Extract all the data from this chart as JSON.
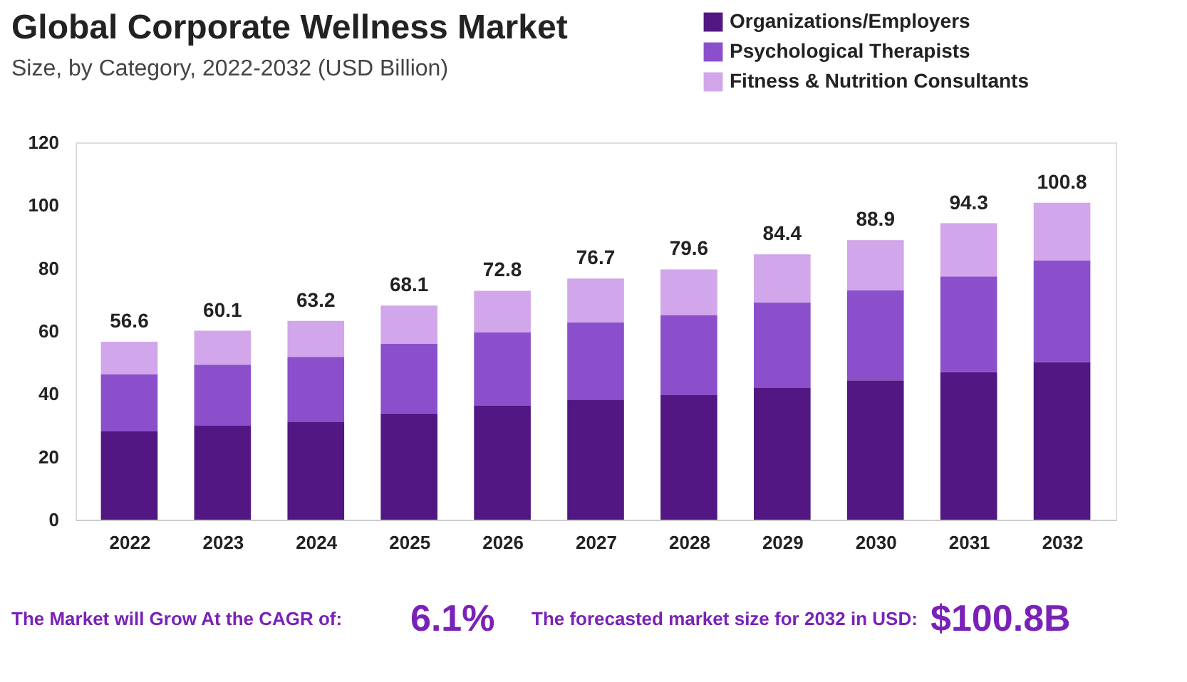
{
  "chart_data": {
    "type": "bar",
    "stacked": true,
    "title": "Global Corporate Wellness Market",
    "subtitle": "Size, by Category, 2022-2032 (USD Billion)",
    "categories": [
      "2022",
      "2023",
      "2024",
      "2025",
      "2026",
      "2027",
      "2028",
      "2029",
      "2030",
      "2031",
      "2032"
    ],
    "series": [
      {
        "name": "Organizations/Employers",
        "color": "#521782",
        "values": [
          28.1,
          29.9,
          31.2,
          33.8,
          36.2,
          38.2,
          39.6,
          41.9,
          44.3,
          46.9,
          50.1
        ]
      },
      {
        "name": "Psychological Therapists",
        "color": "#8b4fcb",
        "values": [
          18.2,
          19.4,
          20.6,
          22.1,
          23.4,
          24.6,
          25.5,
          27.2,
          28.6,
          30.5,
          32.4
        ]
      },
      {
        "name": "Fitness & Nutrition Consultants",
        "color": "#d1a6ea",
        "values": [
          10.3,
          10.8,
          11.4,
          12.2,
          13.2,
          13.9,
          14.5,
          15.3,
          16.0,
          16.9,
          18.3
        ]
      }
    ],
    "totals": [
      "56.6",
      "60.1",
      "63.2",
      "68.1",
      "72.8",
      "76.7",
      "79.6",
      "84.4",
      "88.9",
      "94.3",
      "100.8"
    ],
    "ylim": [
      0,
      120
    ],
    "yticks": [
      0,
      20,
      40,
      60,
      80,
      100,
      120
    ],
    "grid": false,
    "legend": "top right",
    "annotations": [
      "The Market will Grow At the CAGR of:",
      "6.1%",
      "The forecasted market size for 2032 in USD:",
      "$100.8B"
    ]
  }
}
